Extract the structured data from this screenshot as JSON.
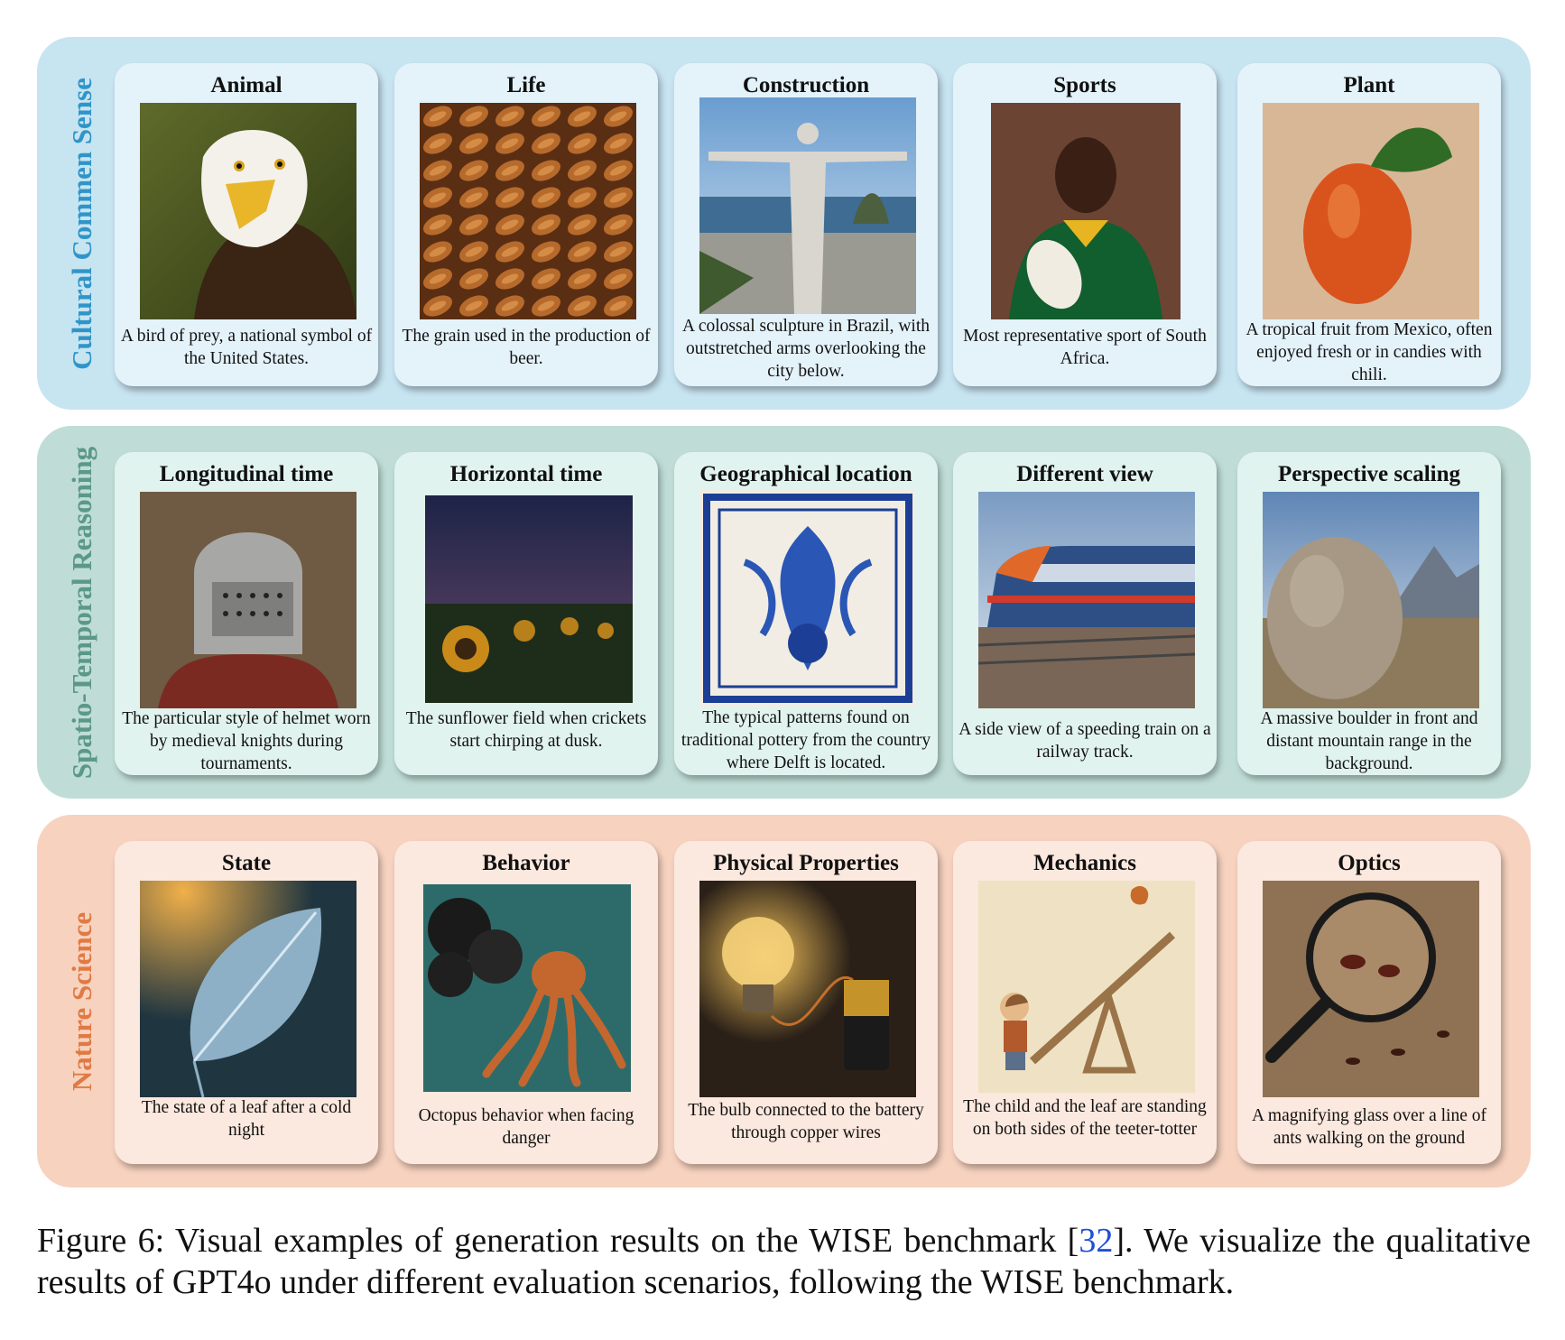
{
  "rows": [
    {
      "label": "Cultural Commen Sense",
      "colors": {
        "panel": "#c7e4f1",
        "card": "#e4f2fa",
        "label": "#2f95c8"
      },
      "cards": [
        {
          "title": "Animal",
          "caption": "A bird of prey, a national symbol of the United States.",
          "image": "bald-eagle"
        },
        {
          "title": "Life",
          "caption": "The grain used in the production of beer.",
          "image": "barley-grains"
        },
        {
          "title": "Construction",
          "caption": "A colossal sculpture in Brazil, with outstretched arms overlooking the city below.",
          "image": "christ-the-redeemer"
        },
        {
          "title": "Sports",
          "caption": "Most representative sport of South Africa.",
          "image": "rugby-player"
        },
        {
          "title": "Plant",
          "caption": "A tropical fruit from Mexico, often enjoyed fresh or in candies with chili.",
          "image": "mamey-fruit"
        }
      ]
    },
    {
      "label": "Spatio-Temporal Reasoning",
      "colors": {
        "panel": "#bfddd6",
        "card": "#e1f3ee",
        "label": "#5b9888"
      },
      "cards": [
        {
          "title": "Longitudinal time",
          "caption": "The particular style of helmet worn by medieval knights during tournaments.",
          "image": "knight-helmet"
        },
        {
          "title": "Horizontal time",
          "caption": "The sunflower field when crickets start chirping at dusk.",
          "image": "sunflower-field-dusk"
        },
        {
          "title": "Geographical location",
          "caption": "The typical patterns found on traditional pottery from the country where Delft is located.",
          "image": "delft-blue-tile"
        },
        {
          "title": "Different view",
          "caption": "A side view of a speeding train on a railway track.",
          "image": "speeding-train"
        },
        {
          "title": "Perspective scaling",
          "caption": "A massive boulder in front and distant mountain range in the background.",
          "image": "boulder-mountains"
        }
      ]
    },
    {
      "label": "Nature Science",
      "colors": {
        "panel": "#f7d2bf",
        "card": "#fbe8de",
        "label": "#e07a43"
      },
      "cards": [
        {
          "title": "State",
          "caption": "The state of a leaf after a cold night",
          "image": "frosted-leaf"
        },
        {
          "title": "Behavior",
          "caption": "Octopus behavior when facing danger",
          "image": "octopus-ink"
        },
        {
          "title": "Physical Properties",
          "caption": "The bulb connected to the battery through copper wires",
          "image": "bulb-battery"
        },
        {
          "title": "Mechanics",
          "caption": "The child and the leaf are standing on both sides of the teeter-totter",
          "image": "child-seesaw"
        },
        {
          "title": "Optics",
          "caption": "A magnifying glass over a line of ants walking on the ground",
          "image": "magnifier-ants"
        }
      ]
    }
  ],
  "figure_caption": {
    "prefix": "Figure 6:  Visual examples of generation results on the WISE benchmark [",
    "ref": "32",
    "suffix": "].  We visualize the qualitative results of GPT4o under different evaluation scenarios, following the WISE benchmark."
  }
}
